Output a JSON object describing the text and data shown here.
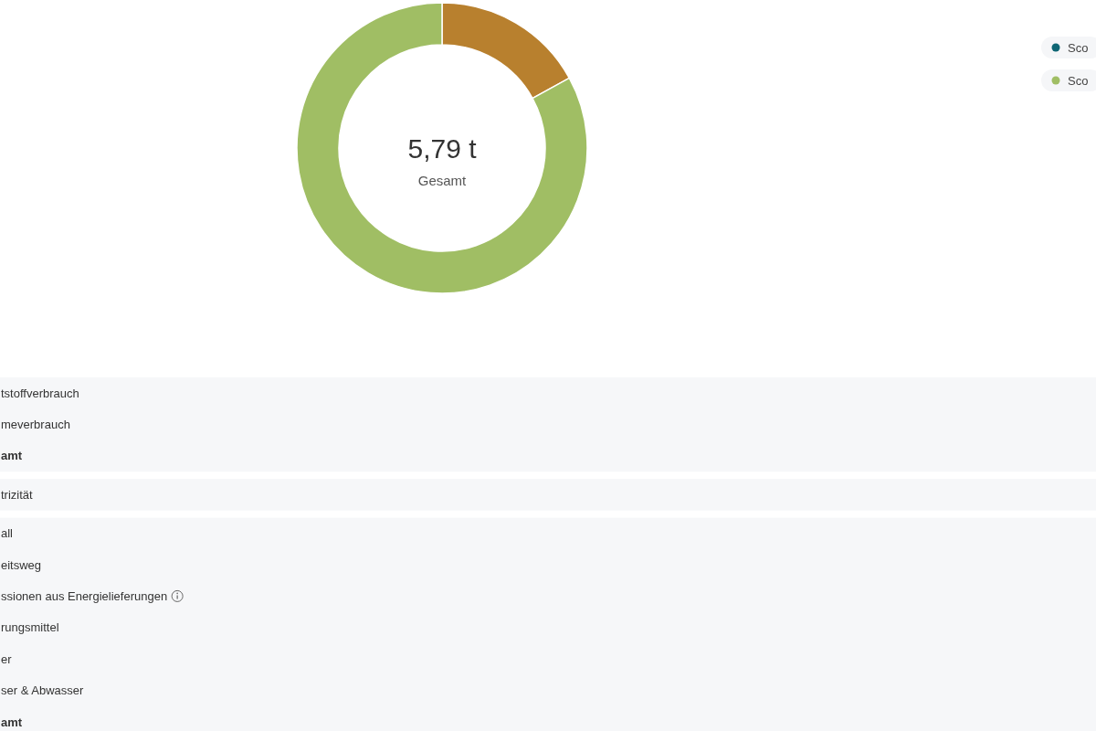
{
  "chart_data": {
    "type": "donut",
    "categories": [
      null,
      "Sco",
      "Sco"
    ],
    "values": [
      17,
      0,
      83
    ],
    "colors": [
      "#b8802e",
      "#0f6674",
      "#a0be64"
    ],
    "legend": "top right",
    "annotations": [
      "5,79 t",
      "Gesamt",
      "tstoffverbrauch",
      "meverbrauch",
      "amt",
      "trizität",
      "all",
      "eitsweg",
      "ssionen aus Energielieferungen",
      "rungsmittel",
      "er",
      "ser & Abwasser",
      "amt"
    ]
  }
}
